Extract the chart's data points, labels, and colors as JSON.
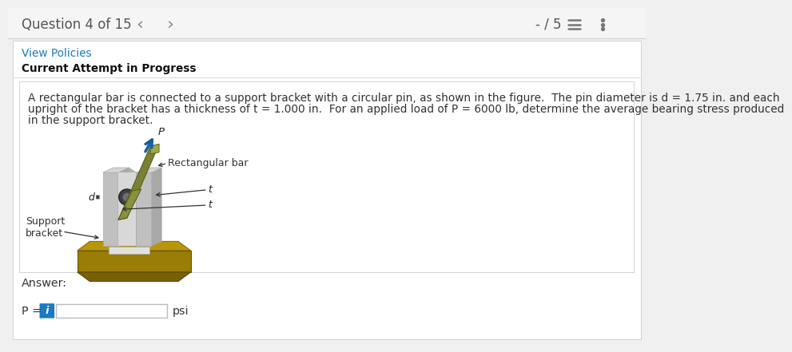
{
  "bg_color": "#f0f0f0",
  "panel_bg": "#ffffff",
  "header_bg": "#f5f5f5",
  "header_text": "Question 4 of 15",
  "header_score": "- / 5",
  "link_text": "View Policies",
  "link_color": "#1a7abf",
  "bold_label": "Current Attempt in Progress",
  "prob_line1": "A rectangular bar is connected to a support bracket with a circular pin, as shown in the figure.  The pin diameter is d = 1.75 in. and each",
  "prob_line2": "upright of the bracket has a thickness of t = 1.000 in.  For an applied load of P = 6000 lb, determine the average bearing stress produced",
  "prob_line3": "in the support bracket.",
  "label_rect_bar": "Rectangular bar",
  "label_support": "Support\nbracket",
  "label_d": "d",
  "label_t1": "t",
  "label_t2": "t",
  "label_P": "P",
  "answer_label": "Answer:",
  "p_label": "P =",
  "psi_label": "psi",
  "input_box_color": "#1a7abf",
  "font_size_header": 12,
  "font_size_body": 9.8,
  "font_size_small": 9.0
}
